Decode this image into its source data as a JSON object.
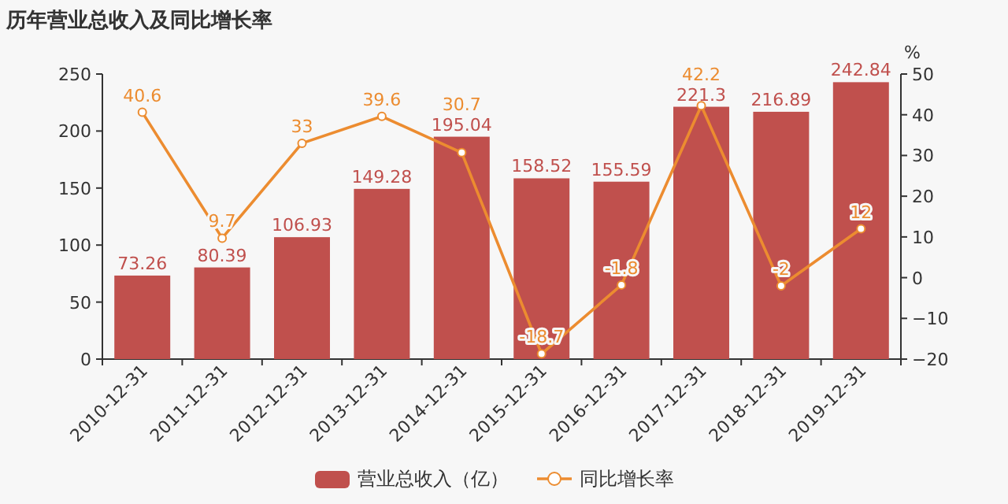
{
  "chart_data": {
    "type": "bar",
    "title": "历年营业总收入及同比增长率",
    "y2label": "%",
    "categories": [
      "2010-12-31",
      "2011-12-31",
      "2012-12-31",
      "2013-12-31",
      "2014-12-31",
      "2015-12-31",
      "2016-12-31",
      "2017-12-31",
      "2018-12-31",
      "2019-12-31"
    ],
    "series": [
      {
        "name": "营业总收入（亿）",
        "color": "#c0504d",
        "values": [
          73.26,
          80.39,
          106.93,
          149.28,
          195.04,
          158.52,
          155.59,
          221.3,
          216.89,
          242.84
        ]
      },
      {
        "name": "同比增长率",
        "type": "line",
        "axis": "y2",
        "color": "#ec8c30",
        "marker": "circle",
        "values": [
          40.6,
          9.7,
          33,
          39.6,
          30.7,
          -18.7,
          -1.8,
          42.2,
          -2,
          12
        ]
      }
    ],
    "ylim": [
      0,
      250
    ],
    "yticks": [
      0,
      50,
      100,
      150,
      200,
      250
    ],
    "y2lim": [
      -20,
      50
    ],
    "y2ticks": [
      -20,
      -10,
      0,
      10,
      20,
      30,
      40,
      50
    ],
    "data_labels": true,
    "grid": false,
    "legend": "bottom"
  }
}
